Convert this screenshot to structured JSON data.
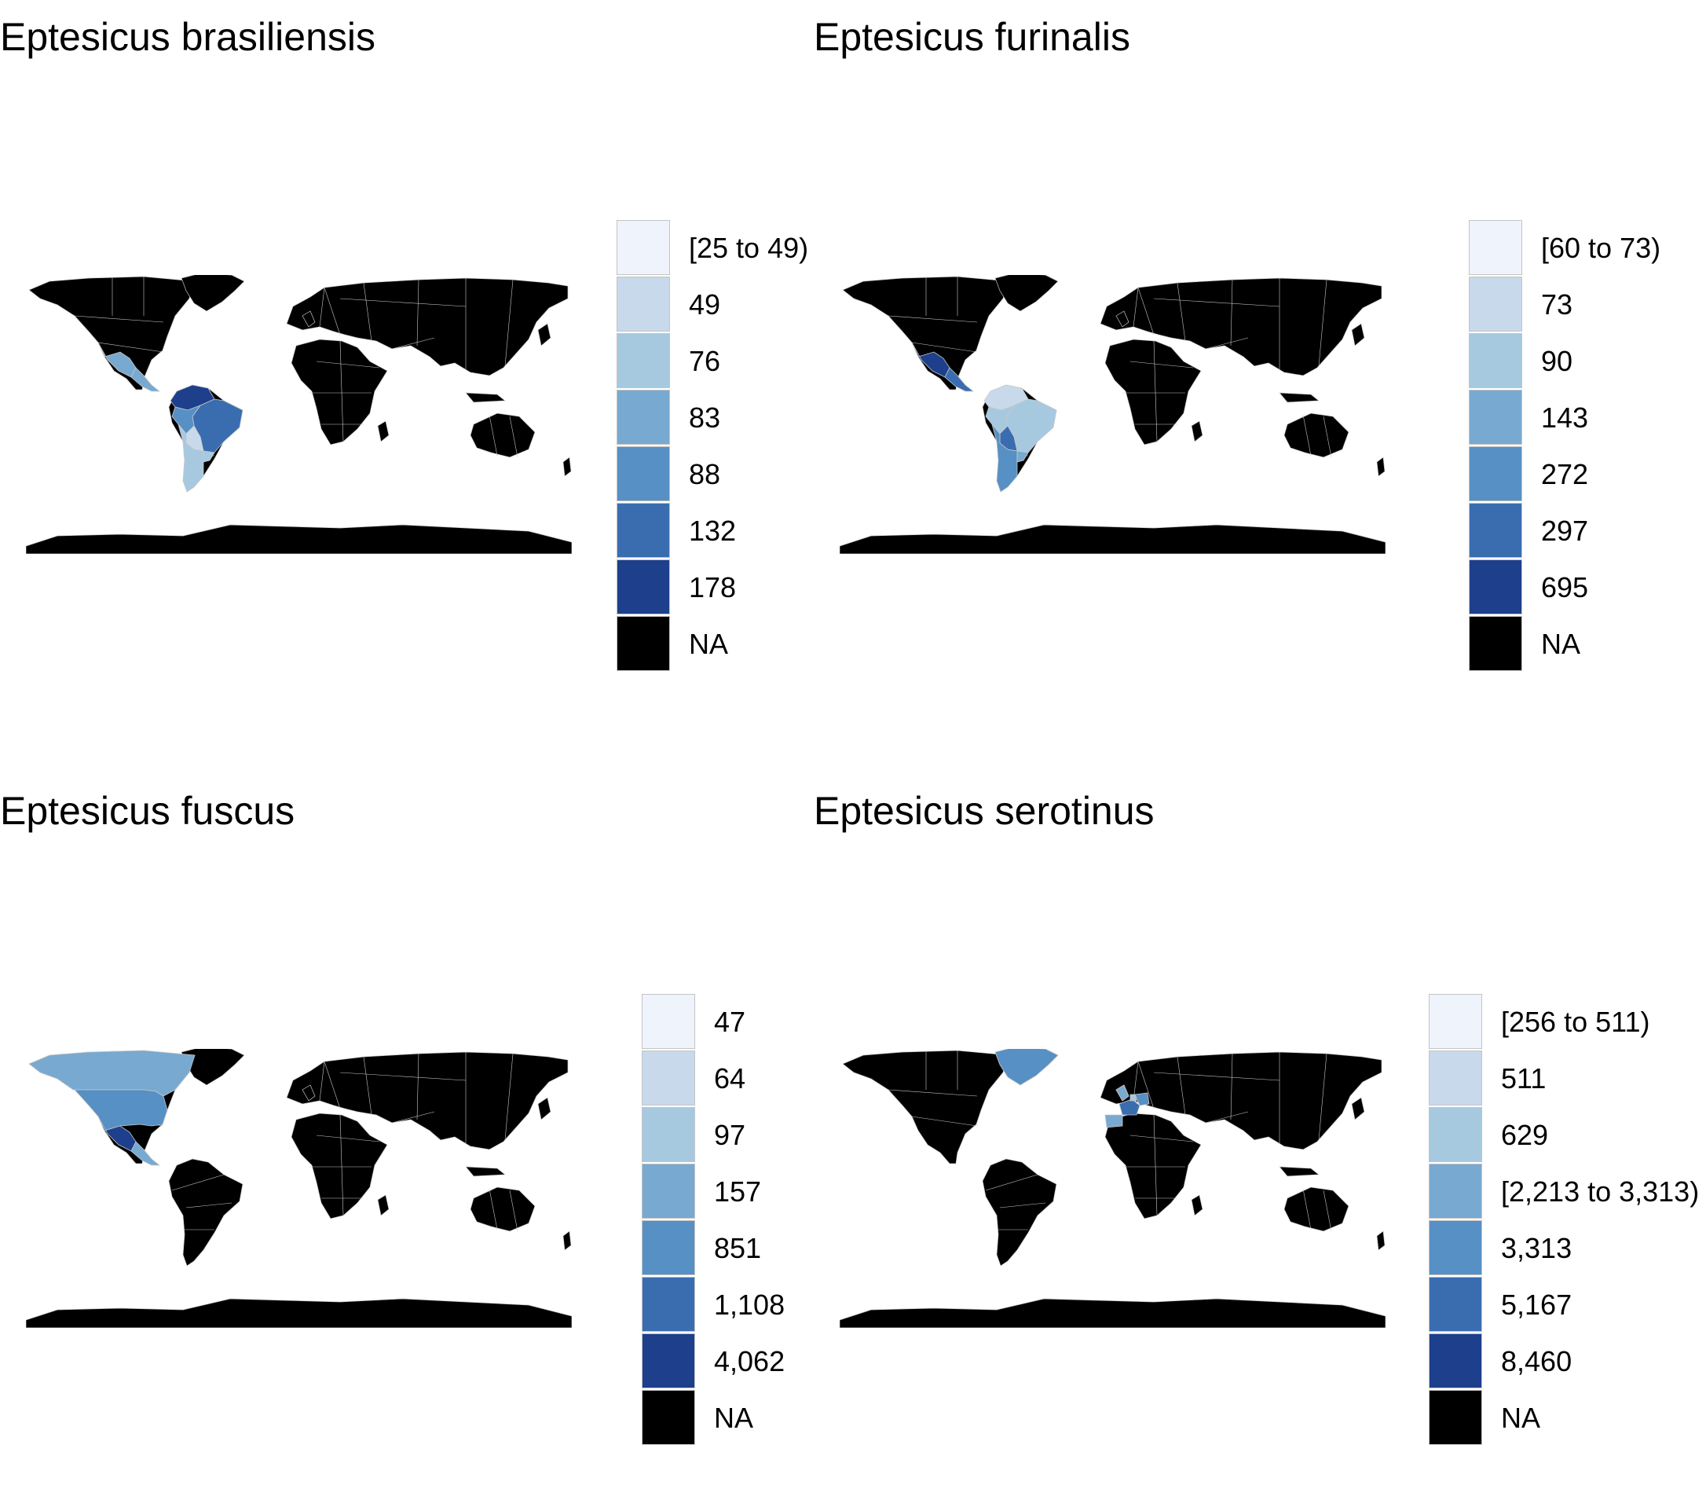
{
  "panels": [
    {
      "title": "Eptesicus brasiliensis",
      "legend": [
        "[25 to 49)",
        "49",
        "76",
        "83",
        "88",
        "132",
        "178",
        "NA"
      ],
      "highlights": [
        {
          "region": "Mexico",
          "color": "#78a9d0"
        },
        {
          "region": "Central America",
          "color": "#78a9d0"
        },
        {
          "region": "Colombia-Venezuela",
          "color": "#1d3f8c"
        },
        {
          "region": "Brazil",
          "color": "#3a6db0"
        },
        {
          "region": "Peru-Bolivia",
          "color": "#5690c4"
        },
        {
          "region": "Paraguay",
          "color": "#c8d9eb"
        },
        {
          "region": "Argentina-Chile",
          "color": "#a6c9e0"
        },
        {
          "region": "Uruguay",
          "color": "#a6c9e0"
        }
      ]
    },
    {
      "title": "Eptesicus furinalis",
      "legend": [
        "[60 to 73)",
        "73",
        "90",
        "143",
        "272",
        "297",
        "695",
        "NA"
      ],
      "highlights": [
        {
          "region": "Mexico",
          "color": "#1d3f8c"
        },
        {
          "region": "Central America",
          "color": "#3a6db0"
        },
        {
          "region": "Colombia-Venezuela",
          "color": "#c8d9eb"
        },
        {
          "region": "Brazil",
          "color": "#a6c9e0"
        },
        {
          "region": "Peru-Bolivia",
          "color": "#a6c9e0"
        },
        {
          "region": "Paraguay",
          "color": "#3a6db0"
        },
        {
          "region": "Argentina-Chile",
          "color": "#5690c4"
        },
        {
          "region": "Uruguay",
          "color": "#78a9d0"
        }
      ]
    },
    {
      "title": "Eptesicus fuscus",
      "legend": [
        "47",
        "64",
        "97",
        "157",
        "851",
        "1,108",
        "4,062",
        "NA"
      ],
      "highlights": [
        {
          "region": "Canada",
          "color": "#78a9d0"
        },
        {
          "region": "USA",
          "color": "#5690c4"
        },
        {
          "region": "Mexico",
          "color": "#1d3f8c"
        },
        {
          "region": "Central America",
          "color": "#78a9d0"
        }
      ]
    },
    {
      "title": "Eptesicus serotinus",
      "legend": [
        "[256 to 511)",
        "511",
        "629",
        "[2,213 to 3,313)",
        "3,313",
        "5,167",
        "8,460",
        "NA"
      ],
      "highlights": [
        {
          "region": "Greenland",
          "color": "#5690c4"
        },
        {
          "region": "Britain",
          "color": "#78a9d0"
        },
        {
          "region": "France",
          "color": "#3a6db0"
        },
        {
          "region": "Iberia",
          "color": "#78a9d0"
        },
        {
          "region": "Germany",
          "color": "#5690c4"
        },
        {
          "region": "Benelux",
          "color": "#a6c9e0"
        }
      ]
    }
  ],
  "legend_colors": [
    "#eff3fb",
    "#c8d9eb",
    "#a6c9e0",
    "#78a9d0",
    "#5690c4",
    "#3a6db0",
    "#1d3f8c",
    "#000000"
  ],
  "land_color": "#000000",
  "border_color": "#c8c8c8"
}
